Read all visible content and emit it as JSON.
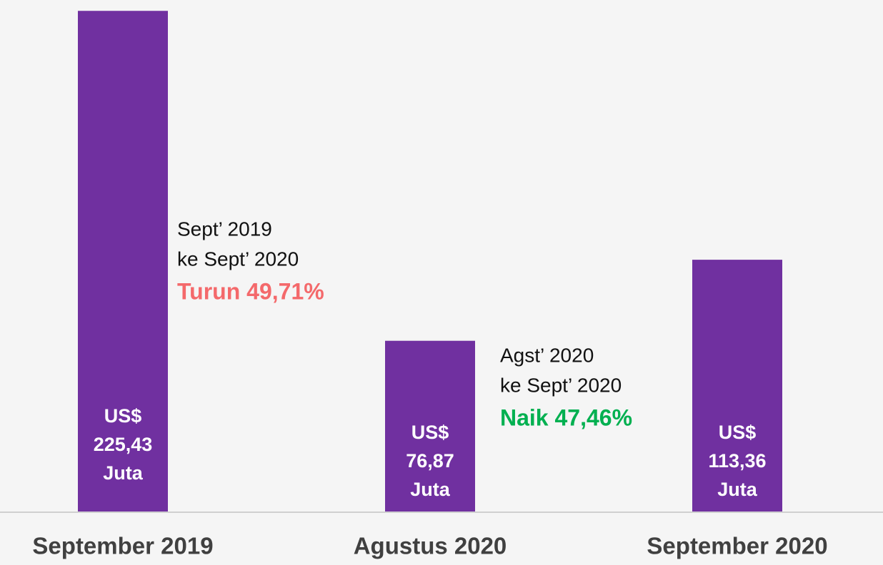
{
  "chart_data": {
    "type": "bar",
    "categories": [
      "September 2019",
      "Agustus 2020",
      "September 2020"
    ],
    "values": [
      225.43,
      76.87,
      113.36
    ],
    "value_labels": [
      "US$ 225,43 Juta",
      "US$ 76,87 Juta",
      "US$ 113,36 Juta"
    ],
    "color": "#7030a0",
    "ylim": [
      0,
      230
    ],
    "annotations": [
      {
        "lines": [
          "Sept’ 2019",
          "ke Sept’ 2020"
        ],
        "change": "Turun 49,71%",
        "color": "#f4696b"
      },
      {
        "lines": [
          "Agst’ 2020",
          "ke Sept’ 2020"
        ],
        "change": "Naik 47,46%",
        "color": "#00b050"
      }
    ]
  }
}
